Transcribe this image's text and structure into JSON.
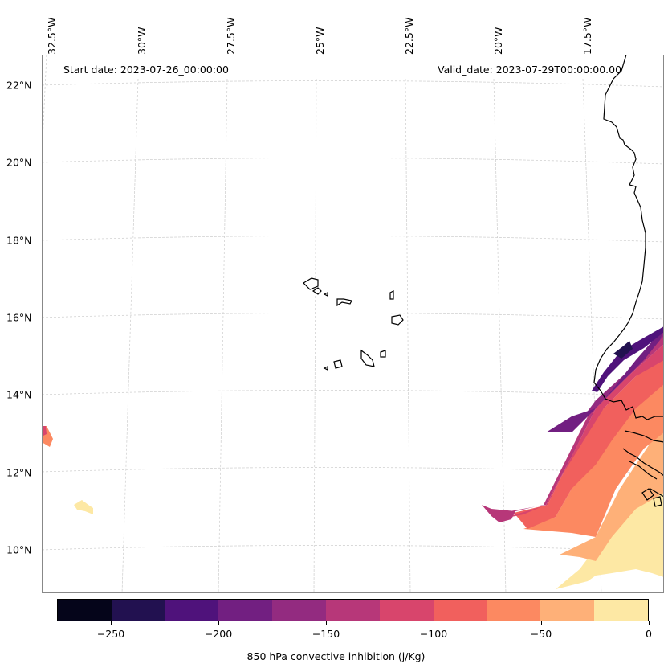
{
  "map": {
    "start_date": "Start date: 2023-07-26_00:00:00",
    "valid_date": "Valid_date: 2023-07-29T00:00:00.00",
    "lon_labels": [
      "32.5°W",
      "30°W",
      "27.5°W",
      "25°W",
      "22.5°W",
      "20°W",
      "17.5°W"
    ],
    "lat_labels": [
      "22°N",
      "20°N",
      "18°N",
      "16°N",
      "14°N",
      "12°N",
      "10°N"
    ]
  },
  "colorbar": {
    "title": "850 hPa convective inhibition (j/Kg)",
    "tick_labels": [
      "−250",
      "−200",
      "−150",
      "−100",
      "−50",
      "0"
    ],
    "tick_values": [
      -250,
      -200,
      -150,
      -100,
      -50,
      0
    ],
    "range": [
      -275,
      0
    ],
    "levels": [
      -275,
      -250,
      -225,
      -200,
      -175,
      -150,
      -125,
      -100,
      -75,
      -50,
      -25,
      0
    ],
    "colors": [
      "#05051a",
      "#221150",
      "#4f127b",
      "#721f81",
      "#932b80",
      "#b73779",
      "#d8456c",
      "#f1605d",
      "#fc8961",
      "#feb078",
      "#fde8a4"
    ]
  }
}
